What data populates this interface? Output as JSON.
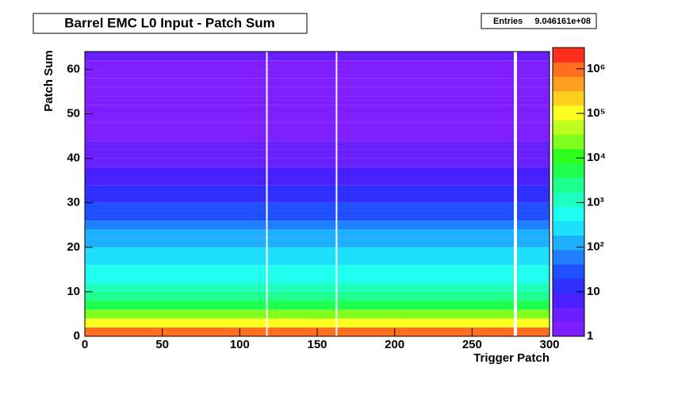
{
  "chart_data": {
    "type": "heatmap",
    "title": "Barrel EMC L0 Input - Patch Sum",
    "stats_label": "Entries",
    "stats_value": "9.046161e+08",
    "x_label": "Trigger Patch",
    "y_label": "Patch Sum",
    "xlim": [
      0,
      300
    ],
    "xticks": [
      0,
      50,
      100,
      150,
      200,
      250,
      300
    ],
    "ylim": [
      0,
      64
    ],
    "yticks": [
      0,
      10,
      20,
      30,
      40,
      50,
      60
    ],
    "y_bins": [
      0,
      2,
      4,
      6,
      8,
      10,
      12,
      14,
      16,
      18,
      20,
      22,
      24,
      26,
      28,
      30,
      32,
      34,
      36,
      38,
      40,
      42,
      44,
      46,
      48,
      50,
      52,
      54,
      56,
      58,
      60,
      62,
      64
    ],
    "values": [
      1000000,
      100000,
      20000,
      6000,
      3000,
      1500,
      800,
      500,
      300,
      200,
      150,
      100,
      60,
      40,
      25,
      18,
      12,
      8,
      6,
      4,
      3,
      3,
      2,
      2,
      2,
      1.5,
      1.5,
      1.2,
      1.2,
      1.2,
      1.2,
      3
    ],
    "empty_x": [
      117,
      162,
      277,
      278
    ],
    "zlog": true,
    "zlim": [
      1,
      3000000
    ],
    "zticks": [
      1,
      10,
      {
        "value": 100,
        "label": "10²"
      },
      {
        "value": 1000,
        "label": "10³"
      },
      {
        "value": 10000,
        "label": "10⁴"
      },
      {
        "value": 100000,
        "label": "10⁵"
      },
      {
        "value": 1000000,
        "label": "10⁶"
      }
    ],
    "palette": [
      "#7f1fff",
      "#6a1fff",
      "#4a1fff",
      "#2f2fff",
      "#1f4fff",
      "#1f7fff",
      "#1fafff",
      "#1fdfff",
      "#1fffef",
      "#1fffbf",
      "#1fff8f",
      "#1fff4f",
      "#2fff1f",
      "#7fff1f",
      "#bfff1f",
      "#ffff1f",
      "#ffcf1f",
      "#ff9f1f",
      "#ff6f1f",
      "#ff2f1f"
    ]
  }
}
